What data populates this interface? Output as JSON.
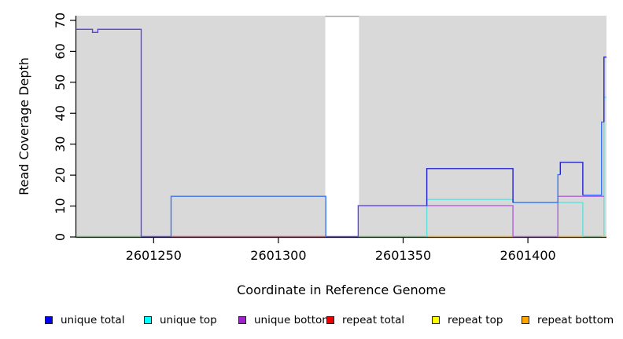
{
  "chart_data": {
    "type": "line",
    "title": "",
    "xlabel": "Coordinate in Reference Genome",
    "ylabel": "Read Coverage Depth",
    "x_domain": [
      2601219,
      2601431.5
    ],
    "y_domain": [
      0,
      71.8
    ],
    "x_ticks": [
      {
        "value": 2601250,
        "label": "2601250"
      },
      {
        "value": 2601300,
        "label": "2601300"
      },
      {
        "value": 2601350,
        "label": "2601350"
      },
      {
        "value": 2601400,
        "label": "2601400"
      }
    ],
    "y_ticks": [
      {
        "value": 0,
        "label": "0"
      },
      {
        "value": 10,
        "label": "10"
      },
      {
        "value": 20,
        "label": "20"
      },
      {
        "value": 30,
        "label": "30"
      },
      {
        "value": 40,
        "label": "40"
      },
      {
        "value": 50,
        "label": "50"
      },
      {
        "value": 60,
        "label": "60"
      },
      {
        "value": 70,
        "label": "70"
      }
    ],
    "plot_background": "#d9d9d9",
    "coverage_gap": {
      "start": 2601318.8,
      "end": 2601332.3
    },
    "grid": false,
    "legend_position": "bottom",
    "series": [
      {
        "name": "clipped-total-cap",
        "color": "#9a9a9a",
        "points": [
          [
            2601318.8,
            71.2
          ],
          [
            2601332.3,
            71.2
          ]
        ]
      },
      {
        "name": "baseline-green-left",
        "color": "#6ab56a",
        "points": [
          [
            2601219,
            0
          ],
          [
            2601245,
            0
          ]
        ]
      },
      {
        "name": "baseline-green-mid",
        "color": "#6ab56a",
        "points": [
          [
            2601332,
            0
          ],
          [
            2601360,
            0
          ]
        ]
      },
      {
        "name": "baseline-green-right",
        "color": "#6ab56a",
        "points": [
          [
            2601422,
            0
          ],
          [
            2601429.6,
            0
          ]
        ]
      },
      {
        "name": "repeat-total-baseline",
        "color": "#d6486e",
        "points": [
          [
            2601257,
            0
          ],
          [
            2601319,
            0
          ]
        ]
      },
      {
        "name": "repeat-bottom-a",
        "color": "#ff9d00",
        "points": [
          [
            2601360,
            0
          ],
          [
            2601394,
            0
          ]
        ]
      },
      {
        "name": "repeat-bottom-b",
        "color": "#ff9d00",
        "points": [
          [
            2601412,
            0
          ],
          [
            2601422,
            0
          ]
        ]
      },
      {
        "name": "repeat-bottom-c",
        "color": "#ff9d00",
        "points": [
          [
            2601429.6,
            0
          ],
          [
            2601431.5,
            0
          ]
        ]
      },
      {
        "name": "unique-top-main",
        "color": "#5fe0dd",
        "points": [
          [
            2601359.5,
            0
          ],
          [
            2601359.5,
            12
          ],
          [
            2601394,
            12
          ],
          [
            2601394,
            11
          ],
          [
            2601422,
            11
          ],
          [
            2601422,
            0
          ]
        ]
      },
      {
        "name": "unique-top-spike",
        "color": "#5fe0dd",
        "points": [
          [
            2601430.5,
            0
          ],
          [
            2601430.5,
            45
          ],
          [
            2601431.5,
            45
          ]
        ]
      },
      {
        "name": "unique-bottom-main",
        "color": "#ad5fd6",
        "points": [
          [
            2601359.5,
            10
          ],
          [
            2601394,
            10
          ],
          [
            2601394,
            0
          ],
          [
            2601412,
            0
          ],
          [
            2601412,
            13
          ],
          [
            2601430.5,
            13
          ]
        ]
      },
      {
        "name": "unique-total-13-box",
        "color": "#3a74f2",
        "points": [
          [
            2601257,
            0
          ],
          [
            2601257,
            13
          ],
          [
            2601319,
            13
          ],
          [
            2601319,
            0
          ]
        ]
      },
      {
        "name": "unique-total-11-shelf",
        "color": "#3a74f2",
        "points": [
          [
            2601394,
            11
          ],
          [
            2601412,
            11
          ],
          [
            2601412,
            20
          ],
          [
            2601413,
            20
          ]
        ]
      },
      {
        "name": "unique-total-13-shelf",
        "color": "#3a74f2",
        "points": [
          [
            2601422,
            13.4
          ],
          [
            2601429.5,
            13.4
          ],
          [
            2601429.5,
            37
          ],
          [
            2601430.5,
            37
          ]
        ]
      },
      {
        "name": "unique-total-22-box",
        "color": "#2121cf",
        "points": [
          [
            2601359.5,
            10
          ],
          [
            2601359.5,
            22
          ],
          [
            2601394,
            22
          ],
          [
            2601394,
            11
          ]
        ]
      },
      {
        "name": "unique-total-24-box",
        "color": "#2121cf",
        "points": [
          [
            2601413,
            20
          ],
          [
            2601413,
            24
          ],
          [
            2601422,
            24
          ],
          [
            2601422,
            13.4
          ]
        ]
      },
      {
        "name": "unique-total-58-spike",
        "color": "#2121cf",
        "points": [
          [
            2601430.5,
            37
          ],
          [
            2601430.5,
            58
          ],
          [
            2601431.5,
            58
          ]
        ]
      },
      {
        "name": "unique-total-67-plateau",
        "color": "#5b42f0",
        "points": [
          [
            2601219,
            67
          ],
          [
            2601225.5,
            67
          ],
          [
            2601225.5,
            66
          ],
          [
            2601227.6,
            66
          ],
          [
            2601227.6,
            67
          ],
          [
            2601245,
            67
          ],
          [
            2601245,
            0
          ],
          [
            2601257,
            0
          ]
        ]
      },
      {
        "name": "unique-gap-and-10-shelf",
        "color": "#5b42f0",
        "points": [
          [
            2601319,
            0
          ],
          [
            2601332,
            0
          ],
          [
            2601332,
            10
          ],
          [
            2601359.5,
            10
          ]
        ]
      }
    ],
    "legend": {
      "items": [
        {
          "label": "unique total",
          "color": "#0000f0"
        },
        {
          "label": "unique top",
          "color": "#00ffff"
        },
        {
          "label": "unique bottom",
          "color": "#a020d0"
        },
        {
          "label": "repeat total",
          "color": "#ee0000"
        },
        {
          "label": "repeat top",
          "color": "#ffff00"
        },
        {
          "label": "repeat bottom",
          "color": "#ffa500"
        }
      ]
    }
  }
}
